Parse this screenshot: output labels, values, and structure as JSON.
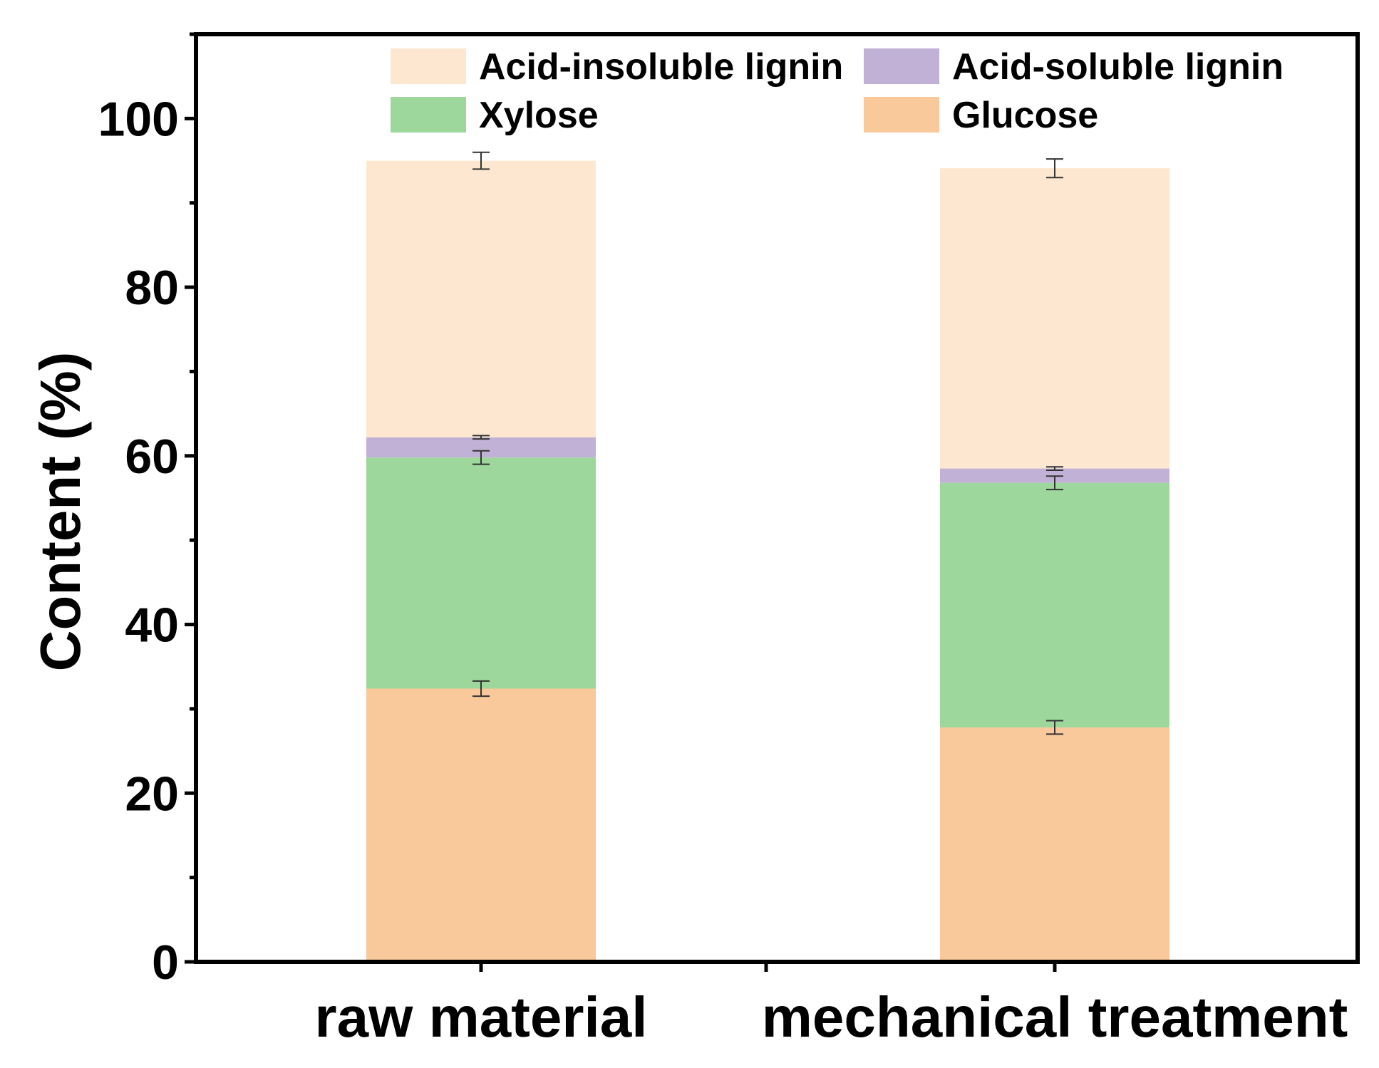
{
  "chart_data": {
    "type": "bar",
    "stacked": true,
    "title": "",
    "xlabel": "",
    "ylabel": "Content (%)",
    "ylim": [
      0,
      110
    ],
    "yticks": [
      0,
      20,
      40,
      60,
      80,
      100
    ],
    "categories": [
      "raw material",
      "mechanical treatment"
    ],
    "series": [
      {
        "name": "Glucose",
        "color": "#f9c89b",
        "values": [
          32.4,
          27.8
        ],
        "errors": [
          0.9,
          0.8
        ]
      },
      {
        "name": "Xylose",
        "color": "#9dd79b",
        "values": [
          27.4,
          29.0
        ],
        "errors": [
          0.8,
          0.8
        ]
      },
      {
        "name": "Acid-soluble lignin",
        "color": "#c1b1d6",
        "values": [
          2.4,
          1.7
        ],
        "errors": [
          0.2,
          0.2
        ]
      },
      {
        "name": "Acid-insoluble lignin",
        "color": "#fde7d0",
        "values": [
          32.8,
          35.6
        ],
        "errors": [
          1.0,
          1.1
        ]
      }
    ],
    "legend": {
      "position": "top",
      "order": [
        "Acid-insoluble lignin",
        "Acid-soluble lignin",
        "Xylose",
        "Glucose"
      ]
    }
  }
}
